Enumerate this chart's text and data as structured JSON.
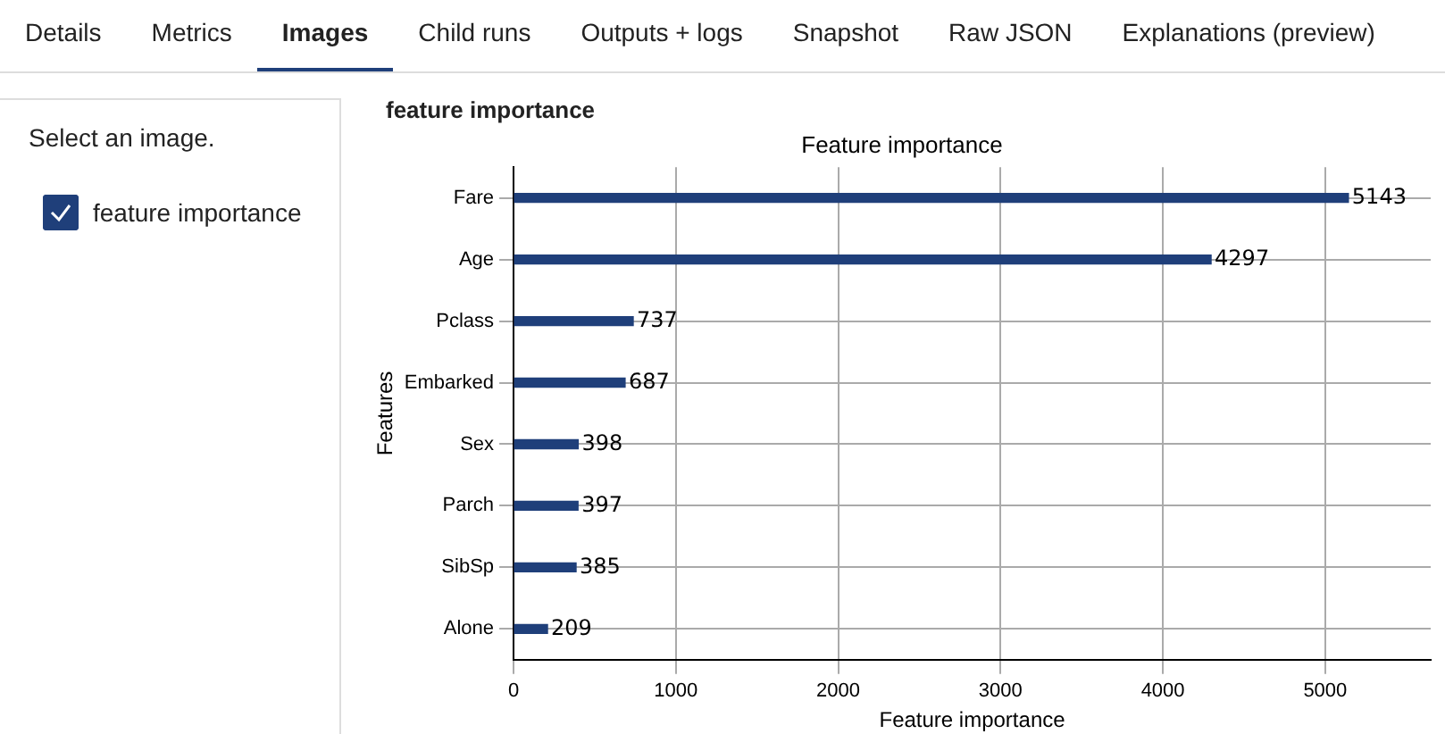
{
  "chart_data": {
    "type": "bar",
    "orientation": "horizontal",
    "title": "Feature importance",
    "xlabel": "Feature importance",
    "ylabel": "Features",
    "categories": [
      "Fare",
      "Age",
      "Pclass",
      "Embarked",
      "Sex",
      "Parch",
      "SibSp",
      "Alone"
    ],
    "values": [
      5143,
      4297,
      737,
      687,
      398,
      397,
      385,
      209
    ],
    "color": "#1f3f7a",
    "xlim": [
      0,
      5650
    ],
    "xticks": [
      0,
      1000,
      2000,
      3000,
      4000,
      5000
    ],
    "grid": true,
    "data_labels": true,
    "legend": false,
    "annotations": [
      "Details",
      "Metrics",
      "Images",
      "Child runs",
      "Outputs + logs",
      "Snapshot",
      "Raw JSON",
      "Explanations (preview)",
      "Select an image.",
      "feature importance",
      "feature importance"
    ]
  }
}
